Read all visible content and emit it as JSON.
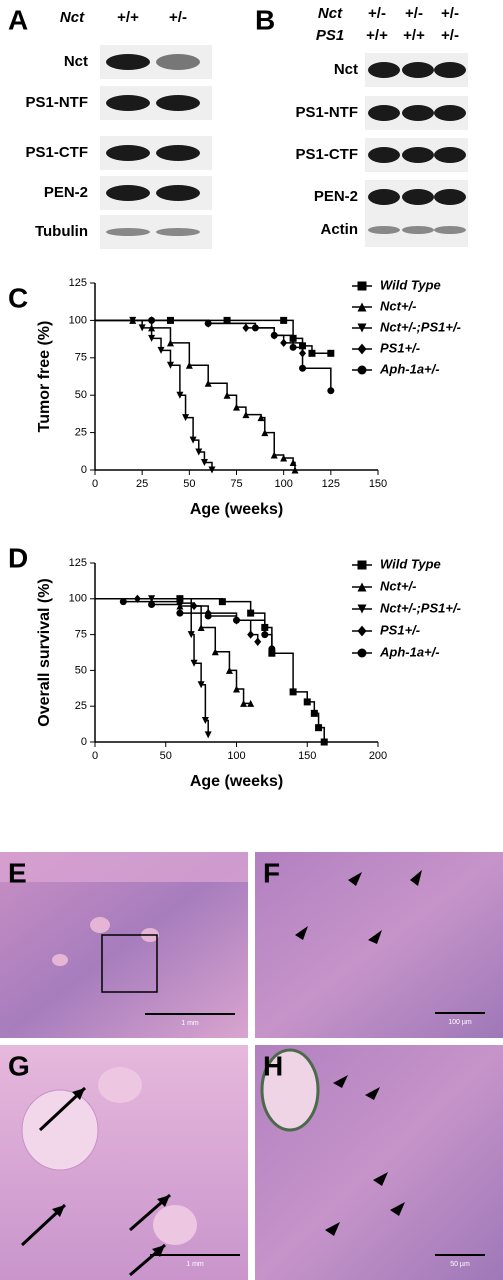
{
  "blots": [
    {
      "label": "A",
      "header": [
        {
          "label": "Nct",
          "lanes": [
            "+/+",
            "+/-"
          ]
        }
      ],
      "rows": [
        "Nct",
        "PS1-NTF",
        "PS1-CTF",
        "PEN-2",
        "Tubulin"
      ]
    },
    {
      "label": "B",
      "header": [
        {
          "label": "Nct",
          "lanes": [
            "+/-",
            "+/-",
            "+/-"
          ]
        },
        {
          "label": "PS1",
          "lanes": [
            "+/+",
            "+/+",
            "+/-"
          ]
        }
      ],
      "rows": [
        "Nct",
        "PS1-NTF",
        "PS1-CTF",
        "PEN-2",
        "Actin"
      ]
    }
  ],
  "chart_data": [
    {
      "panel": "C",
      "type": "line",
      "step": "post",
      "xlabel": "Age (weeks)",
      "ylabel": "Tumor free (%)",
      "xlim": [
        0,
        150
      ],
      "ylim": [
        0,
        125
      ],
      "xticks": [
        0,
        25,
        50,
        75,
        100,
        125,
        150
      ],
      "yticks": [
        0,
        25,
        50,
        75,
        100,
        125
      ],
      "series": [
        {
          "name": "Wild Type",
          "color": "#000000",
          "marker": "square",
          "x": [
            0,
            40,
            70,
            100,
            105,
            110,
            115,
            125
          ],
          "values": [
            100,
            100,
            100,
            100,
            88,
            83,
            78,
            78
          ]
        },
        {
          "name": "Nct+/-",
          "color": "#000000",
          "marker": "triangle",
          "x": [
            0,
            20,
            30,
            40,
            50,
            60,
            70,
            75,
            80,
            88,
            90,
            95,
            100,
            105,
            106
          ],
          "values": [
            100,
            100,
            95,
            85,
            70,
            58,
            50,
            42,
            37,
            35,
            25,
            10,
            8,
            5,
            0
          ]
        },
        {
          "name": "Nct+/-;PS1+/-",
          "color": "#000000",
          "marker": "triangle-down",
          "x": [
            0,
            20,
            25,
            30,
            35,
            40,
            45,
            48,
            52,
            55,
            58,
            62
          ],
          "values": [
            100,
            100,
            95,
            88,
            80,
            70,
            50,
            35,
            20,
            12,
            5,
            0
          ]
        },
        {
          "name": "PS1+/-",
          "color": "#000000",
          "marker": "diamond",
          "x": [
            0,
            30,
            60,
            80,
            95,
            100,
            110
          ],
          "values": [
            100,
            100,
            98,
            95,
            90,
            85,
            78
          ]
        },
        {
          "name": "Aph-1a+/-",
          "color": "#000000",
          "marker": "circle",
          "x": [
            0,
            30,
            60,
            85,
            95,
            105,
            110,
            125
          ],
          "values": [
            100,
            100,
            98,
            95,
            90,
            82,
            68,
            53
          ]
        }
      ]
    },
    {
      "panel": "D",
      "type": "line",
      "step": "post",
      "xlabel": "Age (weeks)",
      "ylabel": "Overall survival (%)",
      "xlim": [
        0,
        200
      ],
      "ylim": [
        0,
        125
      ],
      "xticks": [
        0,
        50,
        100,
        150,
        200
      ],
      "yticks": [
        0,
        25,
        50,
        75,
        100,
        125
      ],
      "series": [
        {
          "name": "Wild Type",
          "color": "#000000",
          "marker": "square",
          "x": [
            0,
            60,
            90,
            110,
            120,
            125,
            140,
            150,
            155,
            158,
            162
          ],
          "values": [
            100,
            100,
            98,
            90,
            80,
            62,
            35,
            28,
            20,
            10,
            0
          ]
        },
        {
          "name": "Nct+/-",
          "color": "#000000",
          "marker": "triangle",
          "x": [
            0,
            40,
            60,
            75,
            85,
            95,
            100,
            105,
            110
          ],
          "values": [
            100,
            98,
            95,
            80,
            63,
            50,
            37,
            27,
            27
          ]
        },
        {
          "name": "Nct+/-;PS1+/-",
          "color": "#000000",
          "marker": "triangle-down",
          "x": [
            0,
            40,
            60,
            68,
            70,
            75,
            78,
            80
          ],
          "values": [
            100,
            100,
            100,
            75,
            55,
            40,
            15,
            5
          ]
        },
        {
          "name": "PS1+/-",
          "color": "#000000",
          "marker": "diamond",
          "x": [
            0,
            30,
            60,
            70,
            80,
            100,
            110,
            115
          ],
          "values": [
            100,
            100,
            97,
            95,
            90,
            85,
            75,
            70
          ]
        },
        {
          "name": "Aph-1a+/-",
          "color": "#000000",
          "marker": "circle",
          "x": [
            0,
            20,
            40,
            60,
            80,
            100,
            120,
            125
          ],
          "values": [
            100,
            98,
            96,
            90,
            88,
            85,
            75,
            65
          ]
        }
      ]
    }
  ],
  "histology": [
    {
      "label": "E",
      "scale_bar": "1 mm"
    },
    {
      "label": "F",
      "scale_bar": "100 µm"
    },
    {
      "label": "G",
      "scale_bar": "1 mm"
    },
    {
      "label": "H",
      "scale_bar": "50 µm"
    }
  ]
}
